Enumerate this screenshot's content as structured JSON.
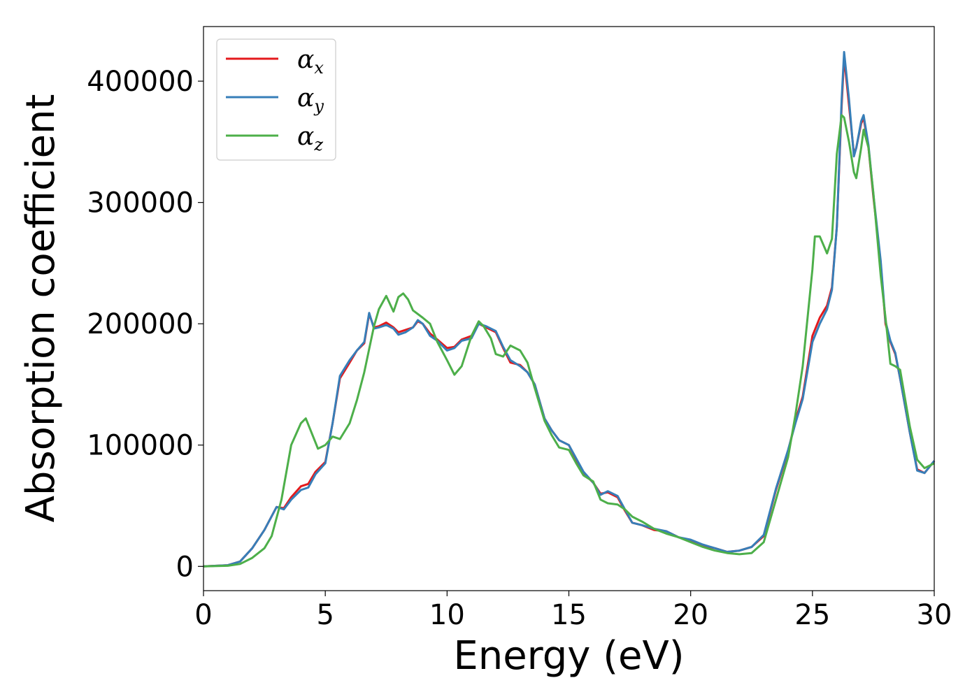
{
  "chart_data": {
    "type": "line",
    "xlabel": "Energy (eV)",
    "ylabel": "Absorption coefficient",
    "xlim": [
      0,
      30
    ],
    "ylim": [
      -20000,
      445000
    ],
    "xticks": [
      0,
      5,
      10,
      15,
      20,
      25,
      30
    ],
    "yticks": [
      0,
      100000,
      200000,
      300000,
      400000
    ],
    "grid": false,
    "legend_position": "top-left",
    "series": [
      {
        "name": "α",
        "subscript": "x",
        "color": "#e41a1c",
        "x": [
          0,
          1,
          1.5,
          2,
          2.5,
          3,
          3.3,
          3.6,
          4,
          4.3,
          4.6,
          5,
          5.3,
          5.6,
          6,
          6.3,
          6.6,
          6.8,
          7,
          7.2,
          7.5,
          7.8,
          8,
          8.3,
          8.6,
          8.8,
          9,
          9.3,
          9.6,
          10,
          10.3,
          10.6,
          11,
          11.3,
          11.6,
          12,
          12.3,
          12.6,
          13,
          13.3,
          13.6,
          14,
          14.3,
          14.6,
          15,
          15.3,
          15.6,
          16,
          16.3,
          16.6,
          17,
          17.3,
          17.6,
          18,
          18.5,
          19,
          19.5,
          20,
          20.5,
          21,
          21.5,
          22,
          22.5,
          23,
          23.5,
          24,
          24.3,
          24.6,
          25,
          25.3,
          25.6,
          25.8,
          26,
          26.2,
          26.3,
          26.5,
          26.7,
          26.8,
          27,
          27.1,
          27.3,
          27.5,
          27.8,
          28,
          28.2,
          28.4,
          28.6,
          29,
          29.3,
          29.6,
          30
        ],
        "values": [
          0,
          1000,
          4000,
          15000,
          30000,
          49000,
          48000,
          57000,
          66000,
          68000,
          78000,
          86000,
          118000,
          155000,
          168000,
          178000,
          184000,
          208000,
          197000,
          198000,
          201000,
          197000,
          193000,
          195000,
          197000,
          202000,
          200000,
          192000,
          187000,
          180000,
          181000,
          187000,
          190000,
          200000,
          197000,
          193000,
          180000,
          168000,
          166000,
          160000,
          150000,
          122000,
          112000,
          104000,
          100000,
          88000,
          77000,
          69000,
          60000,
          61000,
          57000,
          46000,
          36000,
          34000,
          30000,
          29000,
          24000,
          21000,
          17000,
          15000,
          12000,
          13000,
          16000,
          25000,
          63000,
          95000,
          120000,
          140000,
          190000,
          205000,
          215000,
          230000,
          280000,
          380000,
          420000,
          380000,
          340000,
          345000,
          365000,
          370000,
          345000,
          305000,
          250000,
          200000,
          185000,
          175000,
          155000,
          110000,
          80000,
          77000,
          87000
        ]
      },
      {
        "name": "α",
        "subscript": "y",
        "color": "#377eb8",
        "x": [
          0,
          1,
          1.5,
          2,
          2.5,
          3,
          3.3,
          3.6,
          4,
          4.3,
          4.6,
          5,
          5.3,
          5.6,
          6,
          6.3,
          6.6,
          6.8,
          7,
          7.2,
          7.5,
          7.8,
          8,
          8.3,
          8.6,
          8.8,
          9,
          9.3,
          9.6,
          10,
          10.3,
          10.6,
          11,
          11.3,
          11.6,
          12,
          12.3,
          12.6,
          13,
          13.3,
          13.6,
          14,
          14.3,
          14.6,
          15,
          15.3,
          15.6,
          16,
          16.3,
          16.6,
          17,
          17.3,
          17.6,
          18,
          18.5,
          19,
          19.5,
          20,
          20.5,
          21,
          21.5,
          22,
          22.5,
          23,
          23.5,
          24,
          24.3,
          24.6,
          25,
          25.3,
          25.6,
          25.8,
          26,
          26.2,
          26.3,
          26.5,
          26.7,
          26.8,
          27,
          27.1,
          27.3,
          27.5,
          27.8,
          28,
          28.2,
          28.4,
          28.6,
          29,
          29.3,
          29.6,
          30
        ],
        "values": [
          0,
          1000,
          4000,
          15000,
          30000,
          49000,
          47000,
          55000,
          63000,
          65000,
          76000,
          85000,
          118000,
          157000,
          170000,
          178000,
          185000,
          209000,
          196000,
          197000,
          199000,
          196000,
          191000,
          193000,
          197000,
          203000,
          200000,
          190000,
          186000,
          178000,
          180000,
          186000,
          188000,
          200000,
          198000,
          194000,
          181000,
          170000,
          165000,
          160000,
          150000,
          122000,
          112000,
          104000,
          100000,
          89000,
          78000,
          69000,
          59000,
          62000,
          58000,
          47000,
          36000,
          34000,
          31000,
          29000,
          24000,
          22000,
          18000,
          15000,
          12000,
          13000,
          16000,
          26000,
          64000,
          96000,
          118000,
          138000,
          185000,
          200000,
          212000,
          228000,
          280000,
          385000,
          424000,
          385000,
          338000,
          345000,
          367000,
          372000,
          347000,
          307000,
          252000,
          202000,
          186000,
          176000,
          155000,
          110000,
          79000,
          77000,
          87000
        ]
      },
      {
        "name": "α",
        "subscript": "z",
        "color": "#4daf4a",
        "x": [
          0,
          1,
          1.5,
          2,
          2.5,
          2.8,
          3.2,
          3.6,
          4,
          4.2,
          4.4,
          4.7,
          5,
          5.3,
          5.6,
          6,
          6.3,
          6.6,
          7,
          7.2,
          7.5,
          7.8,
          8,
          8.2,
          8.4,
          8.6,
          9,
          9.3,
          9.6,
          10,
          10.3,
          10.6,
          11,
          11.3,
          11.5,
          11.8,
          12,
          12.3,
          12.6,
          13,
          13.3,
          13.6,
          14,
          14.3,
          14.6,
          15,
          15.3,
          15.6,
          16,
          16.3,
          16.6,
          17,
          17.3,
          17.6,
          18,
          18.5,
          19,
          19.5,
          20,
          20.5,
          21,
          21.5,
          22,
          22.5,
          23,
          23.5,
          24,
          24.3,
          24.6,
          25,
          25.1,
          25.3,
          25.6,
          25.8,
          26,
          26.2,
          26.3,
          26.5,
          26.7,
          26.8,
          27,
          27.1,
          27.3,
          27.5,
          27.8,
          28,
          28.2,
          28.4,
          28.6,
          29,
          29.3,
          29.6,
          30
        ],
        "values": [
          0,
          500,
          2000,
          7000,
          15000,
          25000,
          55000,
          100000,
          118000,
          122000,
          112000,
          97000,
          100000,
          107000,
          105000,
          118000,
          137000,
          160000,
          198000,
          212000,
          223000,
          210000,
          222000,
          225000,
          220000,
          211000,
          205000,
          200000,
          185000,
          170000,
          158000,
          165000,
          190000,
          202000,
          198000,
          188000,
          175000,
          173000,
          182000,
          178000,
          168000,
          147000,
          120000,
          108000,
          98000,
          96000,
          85000,
          75000,
          70000,
          55000,
          52000,
          51000,
          47000,
          41000,
          37000,
          31000,
          27000,
          24000,
          20000,
          16000,
          13000,
          11000,
          10000,
          11000,
          20000,
          55000,
          90000,
          125000,
          165000,
          245000,
          272000,
          272000,
          258000,
          270000,
          340000,
          372000,
          370000,
          350000,
          325000,
          320000,
          345000,
          360000,
          345000,
          308000,
          240000,
          205000,
          167000,
          165000,
          162000,
          115000,
          88000,
          81000,
          85000
        ]
      }
    ]
  }
}
